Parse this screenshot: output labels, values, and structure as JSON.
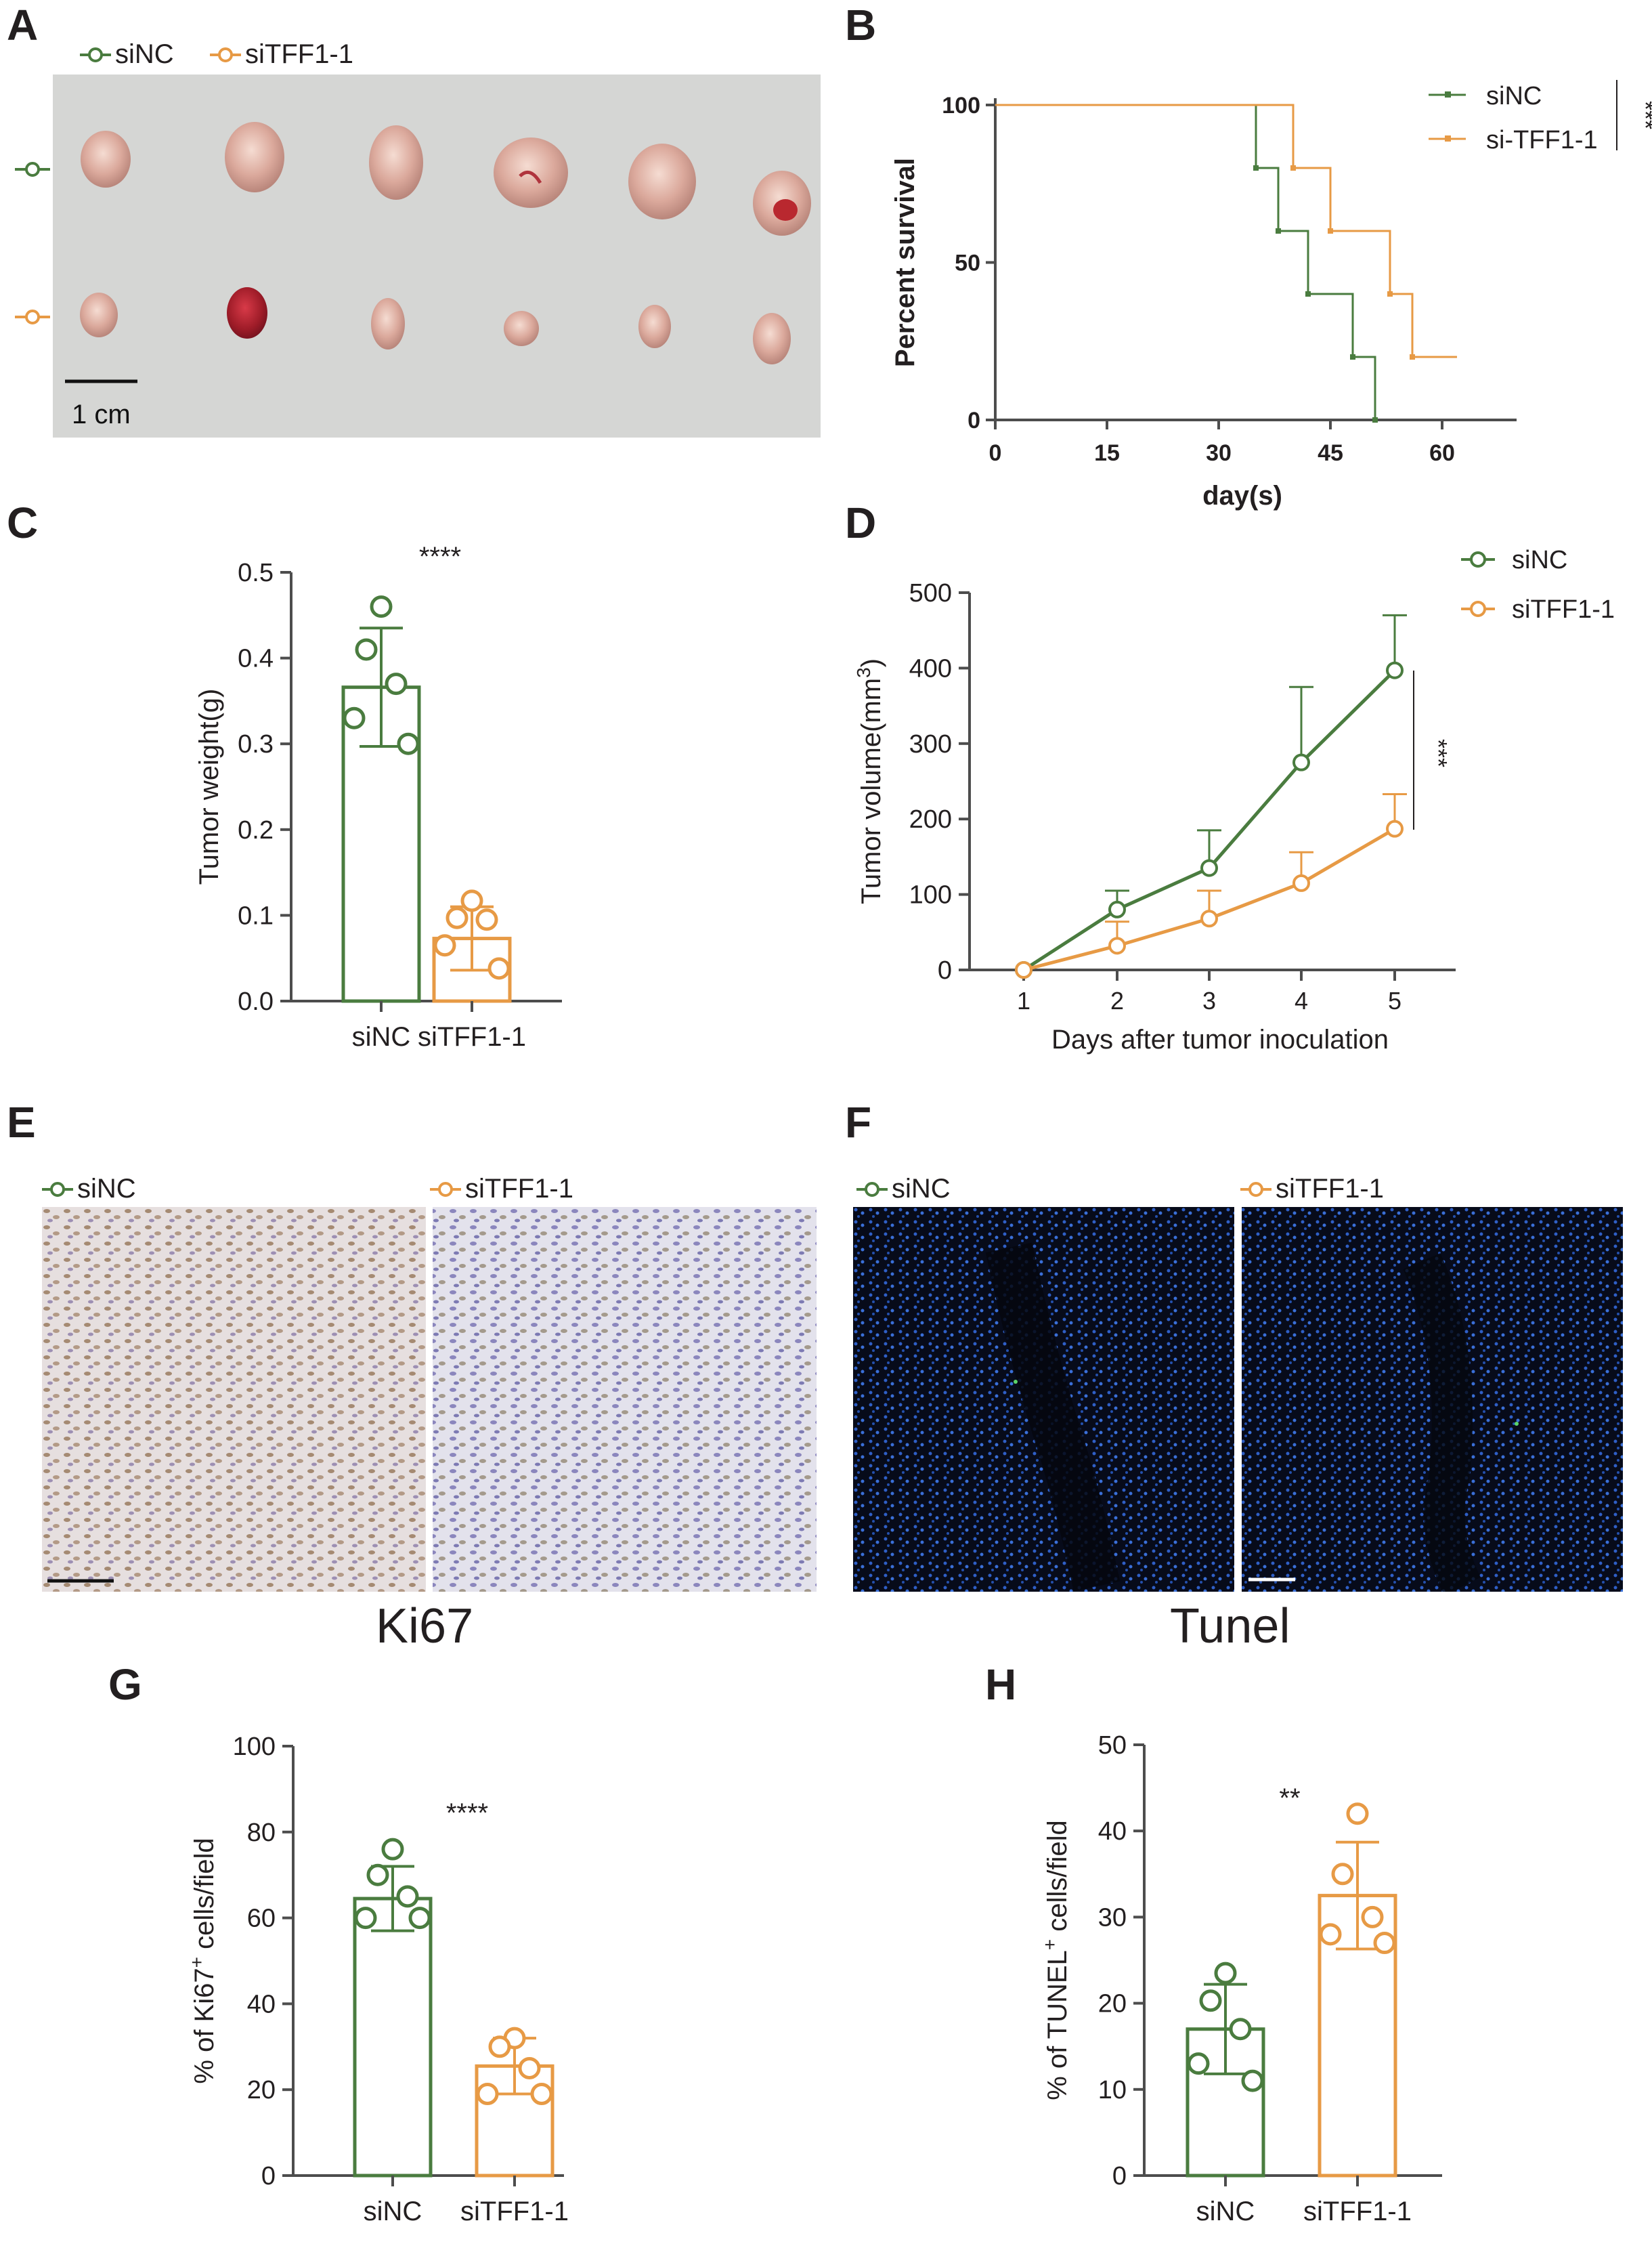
{
  "colors": {
    "green": "#4a7c3f",
    "orange": "#e79a45",
    "axis": "#4d4d4d",
    "text": "#231f20"
  },
  "panels": {
    "A": {
      "letter": "A",
      "legend": [
        "siNC",
        "siTFF1-1"
      ],
      "scale_label": "1 cm"
    },
    "B": {
      "letter": "B"
    },
    "C": {
      "letter": "C"
    },
    "D": {
      "letter": "D"
    },
    "E": {
      "letter": "E",
      "legend": [
        "siNC",
        "siTFF1-1"
      ],
      "caption": "Ki67"
    },
    "F": {
      "letter": "F",
      "legend": [
        "siNC",
        "siTFF1-1"
      ],
      "caption": "Tunel"
    },
    "G": {
      "letter": "G"
    },
    "H": {
      "letter": "H"
    }
  },
  "chart_data": [
    {
      "id": "B",
      "type": "line",
      "subtype": "kaplan-meier step",
      "xlabel": "day(s)",
      "ylabel": "Percent survival",
      "xlim": [
        0,
        70
      ],
      "ylim": [
        0,
        100
      ],
      "xticks": [
        0,
        15,
        30,
        45,
        60
      ],
      "yticks": [
        0,
        50,
        100
      ],
      "significance": "***",
      "legend_position": "top-right",
      "series": [
        {
          "name": "siNC",
          "color": "#4a7c3f",
          "x": [
            0,
            35,
            35,
            38,
            38,
            42,
            42,
            48,
            48,
            51,
            51
          ],
          "y": [
            100,
            100,
            80,
            80,
            60,
            60,
            40,
            40,
            20,
            20,
            0
          ]
        },
        {
          "name": "si-TFF1-1",
          "color": "#e79a45",
          "x": [
            0,
            40,
            40,
            45,
            45,
            53,
            53,
            56,
            56,
            62
          ],
          "y": [
            100,
            100,
            80,
            80,
            60,
            60,
            40,
            40,
            20,
            20
          ]
        }
      ]
    },
    {
      "id": "C",
      "type": "bar",
      "categories": [
        "siNC",
        "siTFF1-1"
      ],
      "ylabel": "Tumor weight(g)",
      "ylim": [
        0,
        0.5
      ],
      "yticks": [
        "0.0",
        "0.1",
        "0.2",
        "0.3",
        "0.4",
        "0.5"
      ],
      "significance": "****",
      "series": [
        {
          "name": "siNC",
          "color": "#4a7c3f",
          "value": 0.366,
          "error": 0.069,
          "points": [
            0.46,
            0.41,
            0.37,
            0.33,
            0.3
          ]
        },
        {
          "name": "siTFF1-1",
          "color": "#e79a45",
          "value": 0.073,
          "error": 0.037,
          "points": [
            0.117,
            0.097,
            0.095,
            0.065,
            0.038
          ]
        }
      ]
    },
    {
      "id": "D",
      "type": "line",
      "xlabel": "Days after tumor inoculation",
      "ylabel": "Tumor volume(mm3)",
      "ylabel_main": "Tumor volume(mm",
      "ylabel_sup": "3",
      "ylabel_close": ")",
      "x": [
        1,
        2,
        3,
        4,
        5
      ],
      "xticks": [
        "1",
        "2",
        "3",
        "4",
        "5"
      ],
      "ylim": [
        0,
        500
      ],
      "yticks": [
        "0",
        "100",
        "200",
        "300",
        "400",
        "500"
      ],
      "significance": "***",
      "legend_position": "top-right",
      "series": [
        {
          "name": "siNC",
          "color": "#4a7c3f",
          "values": [
            0,
            80,
            135,
            275,
            397
          ],
          "error": [
            0,
            25,
            50,
            100,
            73
          ]
        },
        {
          "name": "siTFF1-1",
          "color": "#e79a45",
          "values": [
            0,
            32,
            68,
            115,
            187
          ],
          "error": [
            0,
            32,
            37,
            41,
            46
          ]
        }
      ]
    },
    {
      "id": "G",
      "type": "bar",
      "categories": [
        "siNC",
        "siTFF1-1"
      ],
      "ylabel": "% of Ki67+ cells/field",
      "ylabel_main": "% of Ki67",
      "ylabel_sup": "+",
      "ylabel_rest": " cells/field",
      "ylim": [
        0,
        100
      ],
      "yticks": [
        "0",
        "20",
        "40",
        "60",
        "80",
        "100"
      ],
      "significance": "****",
      "series": [
        {
          "name": "siNC",
          "color": "#4a7c3f",
          "value": 64.5,
          "error": 7.5,
          "points": [
            76,
            70,
            65,
            60,
            60
          ]
        },
        {
          "name": "siTFF1-1",
          "color": "#e79a45",
          "value": 25.5,
          "error": 6.5,
          "points": [
            32,
            30,
            25,
            19,
            19
          ]
        }
      ]
    },
    {
      "id": "H",
      "type": "bar",
      "categories": [
        "siNC",
        "siTFF1-1"
      ],
      "ylabel": "% of TUNEL+ cells/field",
      "ylabel_main": "% of TUNEL",
      "ylabel_sup": "+",
      "ylabel_rest": " cells/field",
      "ylim": [
        0,
        50
      ],
      "yticks": [
        "0",
        "10",
        "20",
        "30",
        "40",
        "50"
      ],
      "significance": "**",
      "series": [
        {
          "name": "siNC",
          "color": "#4a7c3f",
          "value": 17.0,
          "error": 5.2,
          "points": [
            23.5,
            20.3,
            17.0,
            13.0,
            11.0
          ]
        },
        {
          "name": "siTFF1-1",
          "color": "#e79a45",
          "value": 32.5,
          "error": 6.2,
          "points": [
            42,
            35,
            30,
            28,
            27
          ]
        }
      ]
    }
  ]
}
